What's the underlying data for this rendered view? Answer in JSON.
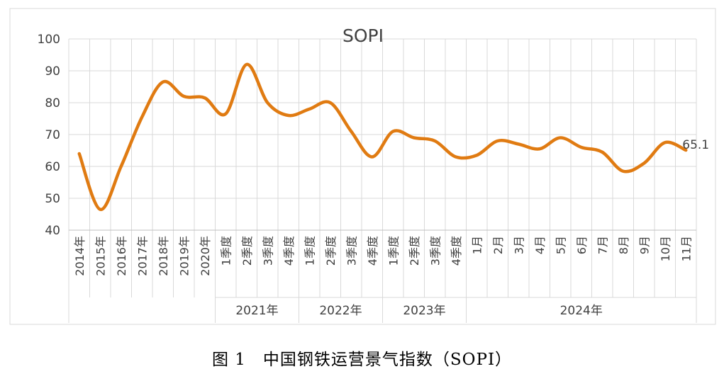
{
  "caption": "图 1　中国钢铁运营景气指数（SOPI）",
  "chart_data": {
    "type": "line",
    "title": "SOPI",
    "xlabel": "",
    "ylabel": "",
    "ylim": [
      40,
      100
    ],
    "yticks": [
      40,
      50,
      60,
      70,
      80,
      90,
      100
    ],
    "grid": true,
    "categories": [
      "2014年",
      "2015年",
      "2016年",
      "2017年",
      "2018年",
      "2019年",
      "2020年",
      "1季度",
      "2季度",
      "3季度",
      "4季度",
      "1季度",
      "2季度",
      "3季度",
      "4季度",
      "1季度",
      "2季度",
      "3季度",
      "4季度",
      "1月",
      "2月",
      "3月",
      "4月",
      "5月",
      "6月",
      "7月",
      "8月",
      "9月",
      "10月",
      "11月"
    ],
    "groups": [
      {
        "label": "",
        "count": 7
      },
      {
        "label": "2021年",
        "count": 4
      },
      {
        "label": "2022年",
        "count": 4
      },
      {
        "label": "2023年",
        "count": 4
      },
      {
        "label": "2024年",
        "count": 11
      }
    ],
    "series": [
      {
        "name": "",
        "color": "#E07B12",
        "values": [
          64,
          46.5,
          60,
          75.5,
          86.5,
          82,
          81.5,
          76.5,
          92,
          80,
          76,
          78,
          80,
          71,
          63,
          71,
          69,
          68,
          63,
          63.5,
          68,
          67,
          65.5,
          69,
          66,
          64.5,
          58.5,
          61,
          67.5,
          65.1
        ]
      }
    ],
    "annotations": [
      {
        "index": 29,
        "text": "65.1"
      }
    ]
  }
}
